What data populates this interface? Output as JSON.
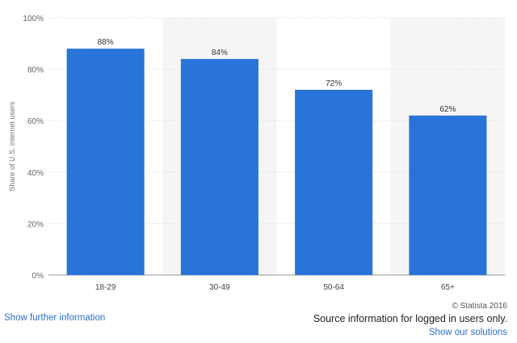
{
  "chart_data": {
    "type": "bar",
    "categories": [
      "18-29",
      "30-49",
      "50-64",
      "65+"
    ],
    "values": [
      88,
      84,
      72,
      62
    ],
    "data_labels": [
      "88%",
      "84%",
      "72%",
      "62%"
    ],
    "title": "",
    "xlabel": "",
    "ylabel": "Share of U.S. internet users",
    "ylim": [
      0,
      100
    ],
    "yticks": [
      0,
      20,
      40,
      60,
      80,
      100
    ],
    "ytick_labels": [
      "0%",
      "20%",
      "40%",
      "60%",
      "80%",
      "100%"
    ],
    "grid": true,
    "legend": "none",
    "bar_color": "#2874d8",
    "alternate_band_color": "#f5f5f5"
  },
  "footer": {
    "credit": "© Statista 2016",
    "source_note": "Source information for logged in users only.",
    "further_info_link": "Show further information",
    "solutions_link": "Show our solutions"
  },
  "colors": {
    "link": "#2b6fd6"
  }
}
